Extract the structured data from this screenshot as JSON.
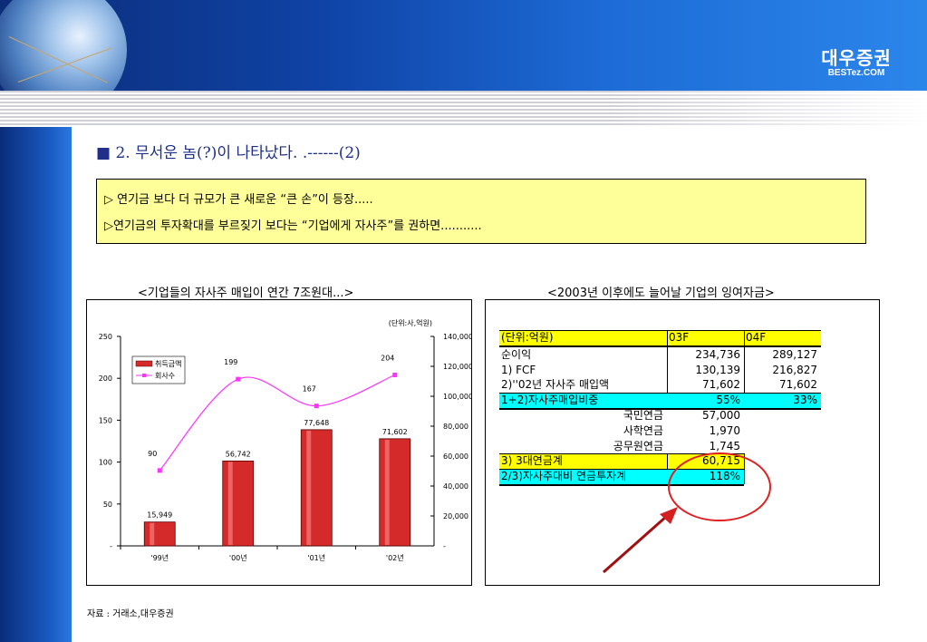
{
  "header": {
    "logo_korean": "대우증권",
    "logo_english": "BESTez.COM"
  },
  "title": "■ 2. 무서운 놈(?)이 나타났다. .------(2)",
  "notes": [
    "▷ 연기금 보다 더 규모가 큰 새로운 “큰 손”이 등장.....",
    "▷연기금의 투자확대를 부르짖기 보다는 “기업에게  자사주”를 권하면..........."
  ],
  "chart_data": {
    "type": "bar",
    "title": "<기업들의 자사주 매입이 연간 7조원대...>",
    "unit_note": "(단위:사,억원)",
    "categories": [
      "'99년",
      "'00년",
      "'01년",
      "'02년"
    ],
    "series": [
      {
        "name": "취득금액",
        "type": "bar",
        "axis": "right",
        "values": [
          15949,
          56742,
          77648,
          71602
        ],
        "labels": [
          "15,949",
          "56,742",
          "77,648",
          "71,602"
        ],
        "color": "#d42a2a"
      },
      {
        "name": "회사수",
        "type": "line",
        "axis": "left",
        "values": [
          90,
          199,
          167,
          204
        ],
        "labels": [
          "90",
          "199",
          "167",
          "204"
        ],
        "color": "#ff33ff"
      }
    ],
    "left_axis": {
      "ylim": [
        0,
        250
      ],
      "ticks": [
        "-",
        "50",
        "100",
        "150",
        "200",
        "250"
      ]
    },
    "right_axis": {
      "ylim": [
        0,
        140000
      ],
      "ticks": [
        "-",
        "20,000",
        "40,000",
        "60,000",
        "80,000",
        "100,000",
        "120,000",
        "140,000"
      ]
    },
    "legend": "top-left"
  },
  "table": {
    "title": "<2003년 이후에도 늘어날 기업의 잉여자금>",
    "header": [
      "(단위:억원)",
      "03F",
      "04F"
    ],
    "rows": [
      [
        "순이익",
        "234,736",
        "289,127"
      ],
      [
        "1) FCF",
        "130,139",
        "216,827"
      ],
      [
        "2)''02년 자사주 매입액",
        "71,602",
        "71,602"
      ],
      [
        "1+2)자사주매입비중",
        "55%",
        "33%"
      ],
      [
        "국민연금",
        "57,000",
        ""
      ],
      [
        "사학연금",
        "1,970",
        ""
      ],
      [
        "공무원연금",
        "1,745",
        ""
      ],
      [
        "3) 3대연금계",
        "60,715",
        ""
      ],
      [
        "2/3)자사주대비 연금투자계",
        "118%",
        ""
      ]
    ]
  },
  "source": "자료 : 거래소,대우증권",
  "colors": {
    "yellow": "#ffff00",
    "cyan": "#00ffff",
    "note_bg": "#ffff99",
    "annotation": "#e02020"
  }
}
